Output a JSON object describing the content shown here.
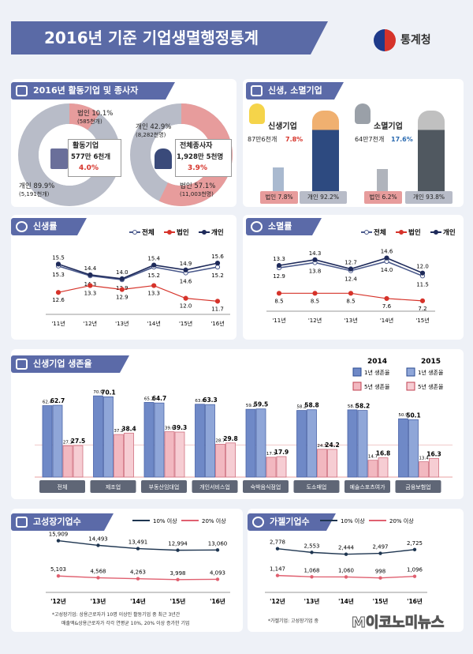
{
  "title": "2016년 기준 기업생멸행정통계",
  "agency": "통계청",
  "watermark": "M이코노미뉴스",
  "sec1": {
    "title": "2016년 활동기업 및 종사자",
    "donut1": {
      "center_title": "활동기업",
      "center_value": "577만 6천개",
      "center_change": "4.0%",
      "corp_label": "법인 10.1%",
      "corp_count": "(585천개)",
      "indiv_label": "개인 89.9%",
      "indiv_count": "(5,191천개)",
      "corp_share": 10.1
    },
    "donut2": {
      "center_title": "전체종사자",
      "center_value": "1,928만 5천명",
      "center_change": "3.9%",
      "indiv_label": "개인 42.9%",
      "indiv_count": "(8,282천명)",
      "corp_label": "법인 57.1%",
      "corp_count": "(11,003천명)",
      "corp_share": 57.1
    }
  },
  "sec2": {
    "title": "신생, 소멸기업",
    "birth": {
      "title": "신생기업",
      "count": "87만6천개",
      "change": "7.8%",
      "corp": "법인 7.8%",
      "indiv": "개인 92.2%"
    },
    "death": {
      "title": "소멸기업",
      "count": "64만7천개",
      "change": "17.6%",
      "corp": "법인 6.2%",
      "indiv": "개인 93.8%"
    }
  },
  "legend3": {
    "total": "전체",
    "corp": "법인",
    "indiv": "개인"
  },
  "birth_rate": {
    "title": "신생률"
  },
  "death_rate": {
    "title": "소멸률"
  },
  "survival": {
    "title": "신생기업 생존율",
    "year_a": "2014",
    "year_b": "2015",
    "leg_1y": "1년 생존율",
    "leg_5y": "5년 생존율"
  },
  "high_growth": {
    "title": "고성장기업수",
    "leg_10": "10% 이상",
    "leg_20": "20% 이상",
    "note1": "*고성장기업: 상용근로자가 10명 이상인 활동기업 중 최근 3년간",
    "note2": "매출액&상용근로자가 각각 연평균 10%, 20% 이상 증가한 기업"
  },
  "gazelle": {
    "title": "가젤기업수",
    "leg_10": "10% 이상",
    "leg_20": "20% 이상",
    "note": "*가젤기업: 고성장기업 중"
  },
  "chart_data": [
    {
      "type": "line",
      "title": "신생률",
      "categories": [
        "'11년",
        "'12년",
        "'13년",
        "'14년",
        "'15년",
        "'16년"
      ],
      "series": [
        {
          "name": "전체",
          "values": [
            15.3,
            14.3,
            13.9,
            15.2,
            14.6,
            15.2
          ]
        },
        {
          "name": "법인",
          "values": [
            12.6,
            13.3,
            12.9,
            13.3,
            12.0,
            11.7
          ]
        },
        {
          "name": "개인",
          "values": [
            15.5,
            14.4,
            14.0,
            15.4,
            14.9,
            15.6
          ]
        }
      ],
      "ylim": [
        11,
        16.5
      ]
    },
    {
      "type": "line",
      "title": "소멸률",
      "categories": [
        "'11년",
        "'12년",
        "'13년",
        "'14년",
        "'15년"
      ],
      "series": [
        {
          "name": "전체",
          "values": [
            12.9,
            13.8,
            12.4,
            14.0,
            11.5
          ]
        },
        {
          "name": "법인",
          "values": [
            8.5,
            8.5,
            8.5,
            7.6,
            7.2
          ]
        },
        {
          "name": "개인",
          "values": [
            13.3,
            14.3,
            12.7,
            14.6,
            12.0
          ]
        }
      ],
      "ylim": [
        6.5,
        15.5
      ]
    },
    {
      "type": "bar",
      "title": "신생기업 생존율",
      "categories": [
        "전체",
        "제조업",
        "부동산임대업",
        "개인서비스업",
        "숙박음식점업",
        "도소매업",
        "예술스포츠여가",
        "금융보험업"
      ],
      "series": [
        {
          "name": "2014 1년 생존율",
          "values": [
            62.4,
            70.9,
            65.2,
            63.6,
            59.2,
            58.2,
            58.7,
            50.9
          ]
        },
        {
          "name": "2015 1년 생존율",
          "values": [
            62.7,
            70.1,
            64.7,
            63.3,
            59.5,
            58.8,
            58.2,
            50.1
          ]
        },
        {
          "name": "2014 5년 생존율",
          "values": [
            27.3,
            37.2,
            39.6,
            28.7,
            17.3,
            24.3,
            14.7,
            13.4
          ]
        },
        {
          "name": "2015 5년 생존율",
          "values": [
            27.5,
            38.4,
            39.3,
            29.8,
            17.9,
            24.2,
            16.8,
            16.3
          ]
        }
      ],
      "ylim": [
        0,
        80
      ]
    },
    {
      "type": "line",
      "title": "고성장기업수",
      "categories": [
        "'12년",
        "'13년",
        "'14년",
        "'15년",
        "'16년"
      ],
      "series": [
        {
          "name": "10% 이상",
          "values": [
            15909,
            14493,
            13491,
            12994,
            13060
          ]
        },
        {
          "name": "20% 이상",
          "values": [
            5103,
            4568,
            4263,
            3998,
            4093
          ]
        }
      ],
      "ylim": [
        2500,
        17500
      ]
    },
    {
      "type": "line",
      "title": "가젤기업수",
      "categories": [
        "'12년",
        "'13년",
        "'14년",
        "'15년",
        "'16년"
      ],
      "series": [
        {
          "name": "10% 이상",
          "values": [
            2778,
            2553,
            2444,
            2497,
            2725
          ]
        },
        {
          "name": "20% 이상",
          "values": [
            1147,
            1068,
            1060,
            998,
            1096
          ]
        }
      ],
      "ylim": [
        600,
        3100
      ]
    }
  ],
  "colors": {
    "navy": "#1e2a5a",
    "red": "#d6332a",
    "tab": "#5b6aa8",
    "donut_gray": "#b8bcc8",
    "donut_pink": "#e79c9c",
    "bar_blue": "#6f89c7",
    "bar_pink": "#f2b8c0"
  }
}
